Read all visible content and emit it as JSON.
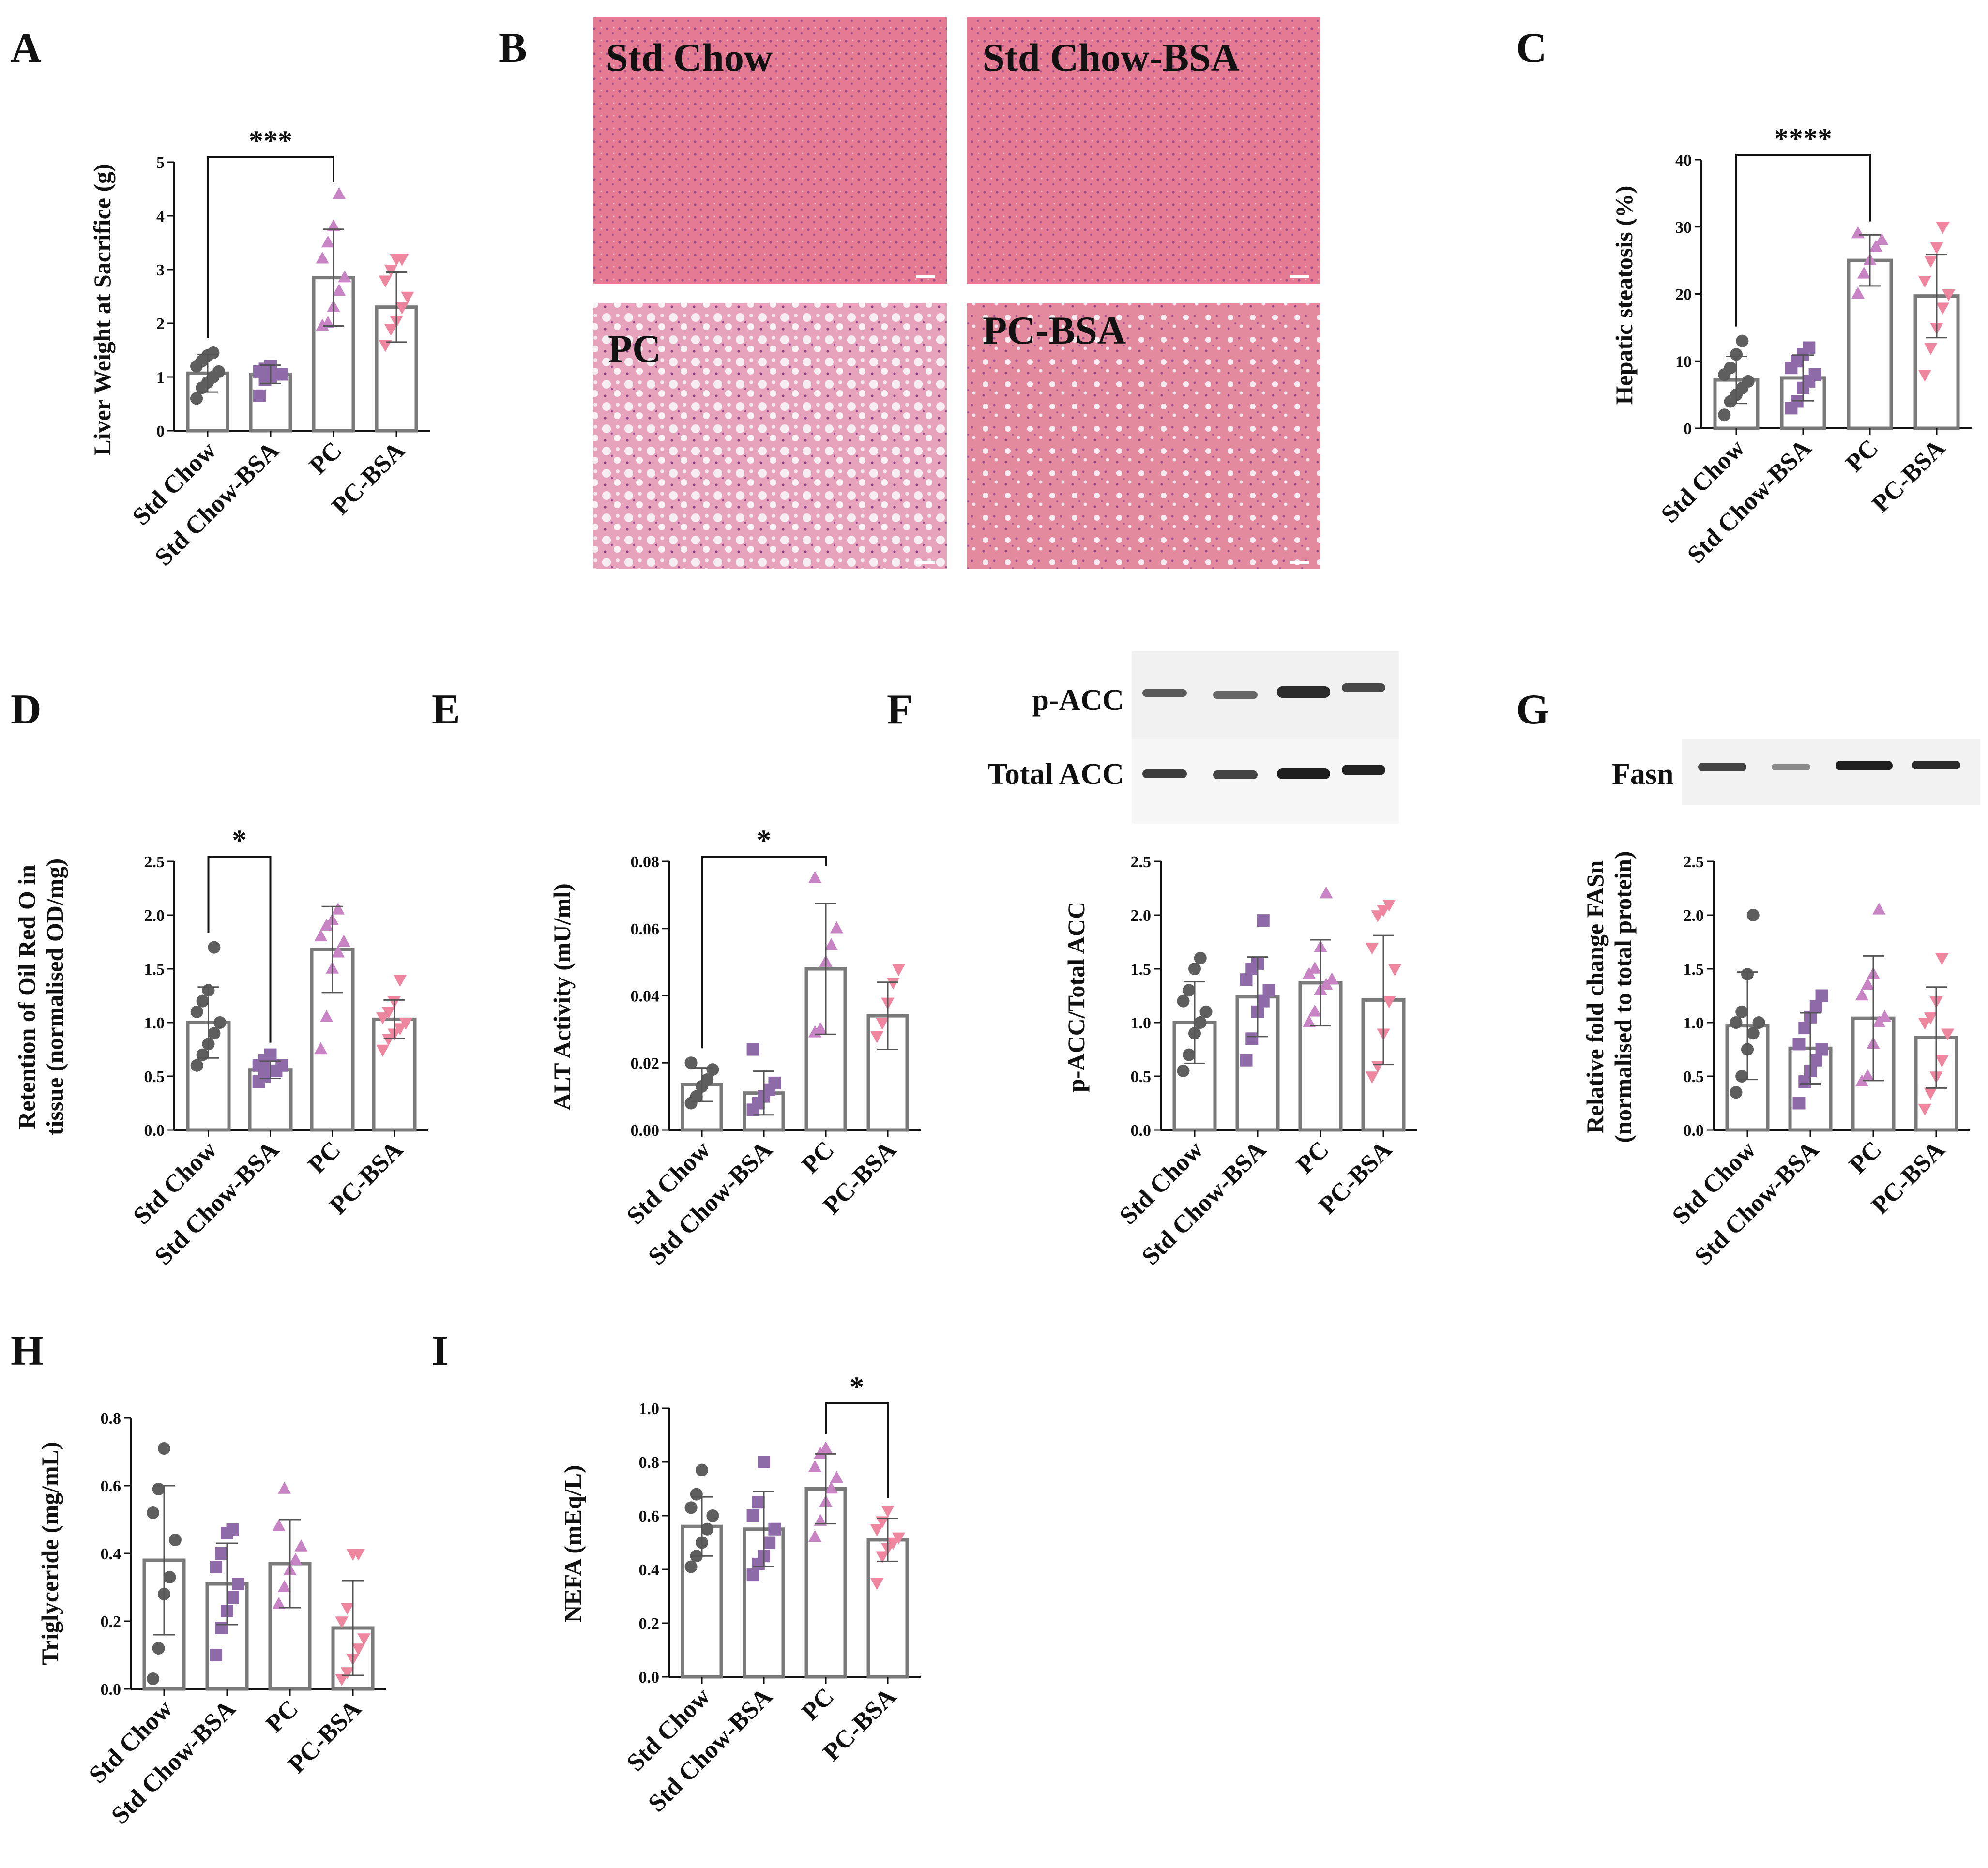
{
  "panel_letters": [
    "A",
    "B",
    "C",
    "D",
    "E",
    "F",
    "G",
    "H",
    "I"
  ],
  "colors": {
    "Std Chow": "#5e5e5e",
    "Std Chow-BSA": "#8e6aa9",
    "PC": "#c883c4",
    "PC-BSA": "#ef86a0",
    "bar_edge": "#7a7a7a",
    "axis": "#111111"
  },
  "histology": {
    "labels": [
      "Std Chow",
      "Std Chow-BSA",
      "PC",
      "PC-BSA"
    ]
  },
  "blots": {
    "F": {
      "labels": [
        "p-ACC",
        "Total ACC"
      ]
    },
    "G": {
      "labels": [
        "Fasn"
      ]
    }
  },
  "chart_data": [
    {
      "id": "A",
      "type": "bar",
      "categories": [
        "Std Chow",
        "Std Chow-BSA",
        "PC",
        "PC-BSA"
      ],
      "ylabel": "Liver Weight at Sacrifice (g)",
      "ylim": [
        0,
        5
      ],
      "yticks": [
        "0",
        "1",
        "2",
        "3",
        "4",
        "5"
      ],
      "yticks_v": [
        0,
        1,
        2,
        3,
        4,
        5
      ],
      "values": [
        1.07,
        1.05,
        2.85,
        2.3
      ],
      "errors": [
        0.35,
        0.17,
        0.9,
        0.65
      ],
      "points": [
        [
          0.6,
          0.8,
          0.9,
          1.0,
          1.1,
          1.2,
          1.3,
          1.4,
          1.45
        ],
        [
          0.65,
          0.95,
          1.0,
          1.05,
          1.05,
          1.1,
          1.15,
          1.2
        ],
        [
          1.95,
          2.0,
          2.3,
          2.6,
          2.85,
          3.2,
          3.5,
          3.8,
          4.4
        ],
        [
          1.6,
          1.9,
          2.05,
          2.3,
          2.5,
          2.8,
          3.0,
          3.2,
          3.2
        ]
      ],
      "significance": [
        {
          "from": 0,
          "to": 2,
          "label": "***"
        }
      ]
    },
    {
      "id": "C",
      "type": "bar",
      "categories": [
        "Std Chow",
        "Std Chow-BSA",
        "PC",
        "PC-BSA"
      ],
      "ylabel": "Hepatic steatosis (%)",
      "ylim": [
        0,
        40
      ],
      "yticks": [
        "0",
        "10",
        "20",
        "30",
        "40"
      ],
      "yticks_v": [
        0,
        10,
        20,
        30,
        40
      ],
      "values": [
        7.2,
        7.5,
        25,
        19.7
      ],
      "errors": [
        3.5,
        3.4,
        3.8,
        6.2
      ],
      "points": [
        [
          2,
          4,
          5,
          6,
          7,
          8,
          9,
          11,
          13
        ],
        [
          3,
          4,
          6,
          7,
          8,
          9,
          10,
          11,
          12
        ],
        [
          20,
          23,
          25,
          27,
          28,
          29
        ],
        [
          8,
          12,
          15,
          18,
          20,
          22,
          25,
          27,
          30
        ]
      ],
      "significance": [
        {
          "from": 0,
          "to": 2,
          "label": "****"
        }
      ]
    },
    {
      "id": "D",
      "type": "bar",
      "categories": [
        "Std Chow",
        "Std Chow-BSA",
        "PC",
        "PC-BSA"
      ],
      "ylabel": "Retention of Oil Red O in|tissue (normalised OD/mg)",
      "ylim": [
        0,
        2.5
      ],
      "yticks": [
        "0.0",
        "0.5",
        "1.0",
        "1.5",
        "2.0",
        "2.5"
      ],
      "yticks_v": [
        0,
        0.5,
        1,
        1.5,
        2,
        2.5
      ],
      "values": [
        1.0,
        0.56,
        1.68,
        1.03
      ],
      "errors": [
        0.33,
        0.08,
        0.4,
        0.18
      ],
      "points": [
        [
          0.6,
          0.7,
          0.8,
          0.9,
          1.0,
          1.1,
          1.2,
          1.3,
          1.7
        ],
        [
          0.45,
          0.5,
          0.55,
          0.55,
          0.6,
          0.6,
          0.65,
          0.7
        ],
        [
          0.75,
          1.05,
          1.5,
          1.65,
          1.75,
          1.8,
          1.9,
          1.95,
          2.05
        ],
        [
          0.75,
          0.85,
          0.9,
          0.95,
          1.0,
          1.05,
          1.1,
          1.2,
          1.4
        ]
      ],
      "significance": [
        {
          "from": 0,
          "to": 1,
          "label": "*"
        }
      ]
    },
    {
      "id": "E",
      "type": "bar",
      "categories": [
        "Std Chow",
        "Std Chow-BSA",
        "PC",
        "PC-BSA"
      ],
      "ylabel": "ALT Activity (mU/ml)",
      "ylim": [
        0,
        0.08
      ],
      "yticks": [
        "0.00",
        "0.02",
        "0.04",
        "0.06",
        "0.08"
      ],
      "yticks_v": [
        0,
        0.02,
        0.04,
        0.06,
        0.08
      ],
      "values": [
        0.0135,
        0.011,
        0.048,
        0.034
      ],
      "errors": [
        0.005,
        0.0065,
        0.0195,
        0.01
      ],
      "points": [
        [
          0.008,
          0.01,
          0.013,
          0.015,
          0.018,
          0.02
        ],
        [
          0.006,
          0.008,
          0.01,
          0.012,
          0.014,
          0.024
        ],
        [
          0.029,
          0.03,
          0.05,
          0.055,
          0.06,
          0.075
        ],
        [
          0.028,
          0.032,
          0.038,
          0.044,
          0.048
        ]
      ],
      "significance": [
        {
          "from": 0,
          "to": 2,
          "label": "*"
        }
      ]
    },
    {
      "id": "F",
      "type": "bar",
      "categories": [
        "Std Chow",
        "Std Chow-BSA",
        "PC",
        "PC-BSA"
      ],
      "ylabel": "p-ACC/Total ACC",
      "ylim": [
        0,
        2.5
      ],
      "yticks": [
        "0.0",
        "0.5",
        "1.0",
        "1.5",
        "2.0",
        "2.5"
      ],
      "yticks_v": [
        0,
        0.5,
        1,
        1.5,
        2,
        2.5
      ],
      "values": [
        1.0,
        1.24,
        1.37,
        1.21
      ],
      "errors": [
        0.38,
        0.37,
        0.4,
        0.6
      ],
      "points": [
        [
          0.55,
          0.7,
          0.9,
          1.0,
          1.1,
          1.2,
          1.3,
          1.5,
          1.6
        ],
        [
          0.65,
          0.85,
          1.1,
          1.2,
          1.3,
          1.4,
          1.5,
          1.55,
          1.95
        ],
        [
          1.0,
          1.1,
          1.3,
          1.35,
          1.4,
          1.45,
          1.5,
          1.7,
          2.2
        ],
        [
          0.5,
          0.6,
          0.9,
          1.2,
          1.5,
          1.7,
          2.0,
          2.05,
          2.1
        ]
      ],
      "significance": []
    },
    {
      "id": "G",
      "type": "bar",
      "categories": [
        "Std Chow",
        "Std Chow-BSA",
        "PC",
        "PC-BSA"
      ],
      "ylabel": "Relative fold change FASn|(normalised to total protein)",
      "ylim": [
        0,
        2.5
      ],
      "yticks": [
        "0.0",
        "0.5",
        "1.0",
        "1.5",
        "2.0",
        "2.5"
      ],
      "yticks_v": [
        0,
        0.5,
        1,
        1.5,
        2,
        2.5
      ],
      "values": [
        0.97,
        0.76,
        1.04,
        0.86
      ],
      "errors": [
        0.5,
        0.33,
        0.58,
        0.47
      ],
      "points": [
        [
          0.35,
          0.5,
          0.75,
          0.9,
          1.0,
          1.0,
          1.1,
          1.45,
          2.0
        ],
        [
          0.25,
          0.45,
          0.55,
          0.65,
          0.75,
          0.8,
          0.95,
          1.05,
          1.15,
          1.25
        ],
        [
          0.45,
          0.5,
          0.8,
          1.0,
          1.05,
          1.25,
          1.35,
          1.45,
          2.05
        ],
        [
          0.2,
          0.35,
          0.5,
          0.65,
          0.9,
          1.0,
          1.05,
          1.2,
          1.6
        ]
      ],
      "significance": []
    },
    {
      "id": "H",
      "type": "bar",
      "categories": [
        "Std Chow",
        "Std Chow-BSA",
        "PC",
        "PC-BSA"
      ],
      "ylabel": "Triglyceride (mg/mL)",
      "ylim": [
        0,
        0.8
      ],
      "yticks": [
        "0.0",
        "0.2",
        "0.4",
        "0.6",
        "0.8"
      ],
      "yticks_v": [
        0,
        0.2,
        0.4,
        0.6,
        0.8
      ],
      "values": [
        0.38,
        0.31,
        0.37,
        0.18
      ],
      "errors": [
        0.22,
        0.12,
        0.13,
        0.14
      ],
      "points": [
        [
          0.03,
          0.12,
          0.28,
          0.33,
          0.44,
          0.52,
          0.59,
          0.71
        ],
        [
          0.1,
          0.18,
          0.23,
          0.27,
          0.31,
          0.36,
          0.4,
          0.46,
          0.47
        ],
        [
          0.25,
          0.3,
          0.35,
          0.38,
          0.42,
          0.48,
          0.59
        ],
        [
          0.03,
          0.05,
          0.09,
          0.12,
          0.15,
          0.2,
          0.24,
          0.4,
          0.4
        ]
      ],
      "significance": []
    },
    {
      "id": "I",
      "type": "bar",
      "categories": [
        "Std Chow",
        "Std Chow-BSA",
        "PC",
        "PC-BSA"
      ],
      "ylabel": "NEFA (mEq/L)",
      "ylim": [
        0,
        1.0
      ],
      "yticks": [
        "0.0",
        "0.2",
        "0.4",
        "0.6",
        "0.8",
        "1.0"
      ],
      "yticks_v": [
        0,
        0.2,
        0.4,
        0.6,
        0.8,
        1.0
      ],
      "values": [
        0.56,
        0.55,
        0.7,
        0.51
      ],
      "errors": [
        0.11,
        0.14,
        0.13,
        0.08
      ],
      "points": [
        [
          0.41,
          0.45,
          0.5,
          0.55,
          0.6,
          0.63,
          0.68,
          0.77
        ],
        [
          0.38,
          0.42,
          0.45,
          0.5,
          0.55,
          0.6,
          0.65,
          0.8
        ],
        [
          0.52,
          0.58,
          0.65,
          0.7,
          0.74,
          0.78,
          0.83,
          0.85
        ],
        [
          0.35,
          0.45,
          0.48,
          0.5,
          0.52,
          0.55,
          0.58,
          0.62
        ]
      ],
      "significance": [
        {
          "from": 2,
          "to": 3,
          "label": "*"
        }
      ]
    }
  ]
}
